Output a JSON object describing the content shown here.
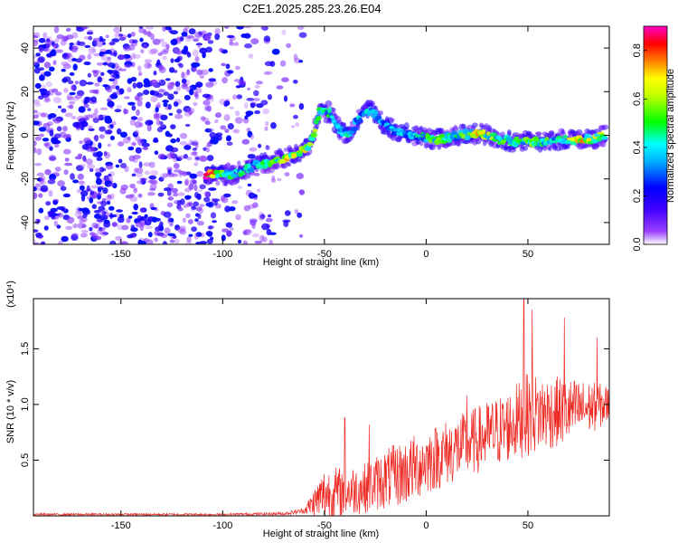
{
  "title": "C2E1.2025.285.23.26.E04",
  "chart_data": [
    {
      "type": "heatmap",
      "xlabel": "Height of straight line (km)",
      "ylabel": "Frequency (Hz)",
      "xlim": [
        -193,
        90
      ],
      "ylim": [
        -50,
        50
      ],
      "xticks": [
        -150,
        -100,
        -50,
        0,
        50
      ],
      "yticks": [
        -40,
        -20,
        0,
        20,
        40
      ],
      "colorbar": {
        "label": "Normalized spectral amplitude",
        "range": [
          0,
          0.9
        ],
        "ticks": [
          "0.0",
          "0.2",
          "0.4",
          "0.6",
          "0.8"
        ],
        "colormap": [
          "#ffffff",
          "#7a00e6",
          "#0000ff",
          "#00ffff",
          "#00ff00",
          "#ffff00",
          "#ff8000",
          "#ff0000",
          "#ff00c8"
        ]
      },
      "noise_region_x": [
        -193,
        -60
      ],
      "noise_amplitude": 0.12,
      "ridge": [
        {
          "x": -108,
          "y": -18,
          "a": 0.85
        },
        {
          "x": -95,
          "y": -18,
          "a": 0.5
        },
        {
          "x": -85,
          "y": -14,
          "a": 0.4
        },
        {
          "x": -75,
          "y": -12,
          "a": 0.55
        },
        {
          "x": -65,
          "y": -9,
          "a": 0.7
        },
        {
          "x": -57,
          "y": -5,
          "a": 0.6
        },
        {
          "x": -52,
          "y": 12,
          "a": 0.5
        },
        {
          "x": -47,
          "y": 10,
          "a": 0.45
        },
        {
          "x": -42,
          "y": 2,
          "a": 0.4
        },
        {
          "x": -38,
          "y": 0,
          "a": 0.45
        },
        {
          "x": -33,
          "y": 8,
          "a": 0.4
        },
        {
          "x": -27,
          "y": 12,
          "a": 0.45
        },
        {
          "x": -22,
          "y": 6,
          "a": 0.4
        },
        {
          "x": -15,
          "y": 2,
          "a": 0.35
        },
        {
          "x": -5,
          "y": 0,
          "a": 0.4
        },
        {
          "x": 5,
          "y": -2,
          "a": 0.55
        },
        {
          "x": 15,
          "y": 0,
          "a": 0.45
        },
        {
          "x": 27,
          "y": 1,
          "a": 0.7
        },
        {
          "x": 35,
          "y": -2,
          "a": 0.5
        },
        {
          "x": 45,
          "y": -3,
          "a": 0.5
        },
        {
          "x": 55,
          "y": -3,
          "a": 0.55
        },
        {
          "x": 65,
          "y": -2,
          "a": 0.45
        },
        {
          "x": 72,
          "y": -2,
          "a": 0.65
        },
        {
          "x": 80,
          "y": -2,
          "a": 0.7
        },
        {
          "x": 88,
          "y": 0,
          "a": 0.5
        }
      ]
    },
    {
      "type": "line",
      "xlabel": "Height of straight line (km)",
      "ylabel": "SNR (10 * v/v)",
      "y_multiplier": "(x10⁴)",
      "xlim": [
        -193,
        90
      ],
      "ylim": [
        0,
        1.95
      ],
      "xticks": [
        -150,
        -100,
        -50,
        0,
        50
      ],
      "yticks": [
        "0.5",
        "1.0",
        "1.5"
      ],
      "color": "#ee2a24",
      "trend": [
        {
          "x": -193,
          "mean": 0.01,
          "spread": 0.02
        },
        {
          "x": -100,
          "mean": 0.01,
          "spread": 0.02
        },
        {
          "x": -70,
          "mean": 0.015,
          "spread": 0.03
        },
        {
          "x": -60,
          "mean": 0.04,
          "spread": 0.05
        },
        {
          "x": -50,
          "mean": 0.12,
          "spread": 0.5
        },
        {
          "x": -40,
          "mean": 0.15,
          "spread": 0.45
        },
        {
          "x": -30,
          "mean": 0.18,
          "spread": 0.45
        },
        {
          "x": -20,
          "mean": 0.25,
          "spread": 0.55
        },
        {
          "x": -10,
          "mean": 0.3,
          "spread": 0.6
        },
        {
          "x": 0,
          "mean": 0.4,
          "spread": 0.6
        },
        {
          "x": 20,
          "mean": 0.55,
          "spread": 0.6
        },
        {
          "x": 40,
          "mean": 0.7,
          "spread": 0.65
        },
        {
          "x": 50,
          "mean": 0.8,
          "spread": 0.75
        },
        {
          "x": 70,
          "mean": 0.85,
          "spread": 0.6
        },
        {
          "x": 90,
          "mean": 0.95,
          "spread": 0.35
        }
      ],
      "peaks": [
        {
          "x": -40,
          "y": 0.88
        },
        {
          "x": -28,
          "y": 0.82
        },
        {
          "x": 20,
          "y": 1.08
        },
        {
          "x": 48,
          "y": 1.95
        },
        {
          "x": 52,
          "y": 1.85
        },
        {
          "x": 68,
          "y": 1.78
        },
        {
          "x": 84,
          "y": 1.6
        }
      ]
    }
  ]
}
